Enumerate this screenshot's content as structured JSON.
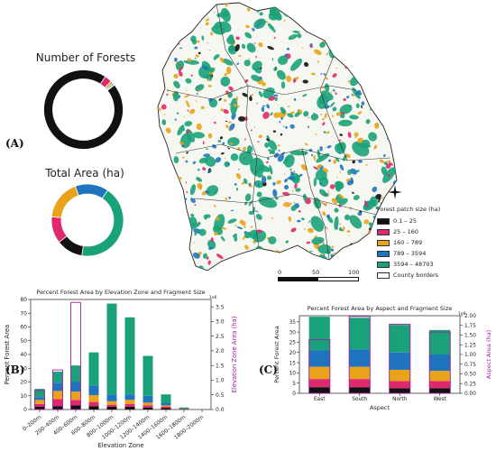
{
  "panel_labels": {
    "a": "(A)",
    "b": "(B)",
    "c": "(C)"
  },
  "colors": {
    "c0": "#111111",
    "c1": "#e0286e",
    "c2": "#e8a31a",
    "c3": "#1f74c0",
    "c4": "#19a27a",
    "totals": "#a020a0",
    "border": "#222222"
  },
  "donuts": {
    "count": {
      "title": "Number of Forests",
      "shares": [
        0.95,
        0.03,
        0.01,
        0.006,
        0.004
      ]
    },
    "area": {
      "title": "Total Area (ha)",
      "shares": [
        0.12,
        0.12,
        0.18,
        0.15,
        0.43
      ]
    }
  },
  "map": {
    "legend_title": "Forest patch size (ha)",
    "legend": [
      {
        "label": "0.1 – 25",
        "color": "#111111"
      },
      {
        "label": "25 – 160",
        "color": "#e0286e"
      },
      {
        "label": "160 – 789",
        "color": "#e8a31a"
      },
      {
        "label": "789 – 3594",
        "color": "#1f74c0"
      },
      {
        "label": "3594 – 48703",
        "color": "#19a27a"
      },
      {
        "label": "County borders",
        "color": "#ffffff"
      }
    ],
    "scale_labels": [
      "0",
      "50",
      "100 km"
    ]
  },
  "chart_data": [
    {
      "type": "bar",
      "title": "Percent Forest Area by Elevation Zone and Fragment Size",
      "xlabel": "Elevation Zone",
      "ylabel": "Percent Forest Area",
      "y2label": "Elevation Zone Area (ha)",
      "y2_scale_note": "1e6",
      "ylim": [
        0,
        80
      ],
      "y2lim": [
        0,
        3.75
      ],
      "yticks": [
        0,
        10,
        20,
        30,
        40,
        50,
        60,
        70,
        80
      ],
      "y2ticks": [
        "0.0",
        "0.5",
        "1.0",
        "1.5",
        "2.0",
        "2.5",
        "3.0",
        "3.5"
      ],
      "categories": [
        "0–200m",
        "200–400m",
        "400–600m",
        "600–800m",
        "800–1000m",
        "1000–1200m",
        "1200–1400m",
        "1400–1600m",
        "1600–1800m",
        "1800–2000m"
      ],
      "series": [
        {
          "name": "0.1 – 25",
          "values": [
            2,
            2.5,
            3,
            2.5,
            2,
            2,
            1.5,
            1,
            0.3,
            0
          ]
        },
        {
          "name": "25 – 160",
          "values": [
            2,
            5,
            4,
            3,
            1.5,
            2,
            1.5,
            1,
            0.2,
            0
          ]
        },
        {
          "name": "160 – 789",
          "values": [
            3,
            6,
            6,
            5,
            2.5,
            3,
            2,
            1,
            0.2,
            0
          ]
        },
        {
          "name": "789 – 3594",
          "values": [
            2,
            6,
            7,
            7,
            5,
            4,
            5,
            2,
            0.3,
            0
          ]
        },
        {
          "name": "3594 – 48703",
          "values": [
            6,
            8,
            12,
            24,
            66,
            56,
            29,
            6,
            0.5,
            0
          ]
        }
      ],
      "area_totals": [
        0.65,
        1.35,
        3.65,
        0,
        0,
        0,
        0,
        0,
        0,
        0
      ]
    },
    {
      "type": "bar",
      "title": "Percent Forest Area by Aspect and Fragment Size",
      "xlabel": "Aspect",
      "ylabel": "Percent Forest Area",
      "y2label": "Aspect Area (ha)",
      "y2_scale_note": "1e6",
      "ylim": [
        0,
        38
      ],
      "y2lim": [
        0,
        2.0
      ],
      "yticks": [
        0,
        5,
        10,
        15,
        20,
        25,
        30,
        35
      ],
      "y2ticks": [
        "0.00",
        "0.25",
        "0.50",
        "0.75",
        "1.00",
        "1.25",
        "1.50",
        "1.75",
        "2.00"
      ],
      "categories": [
        "East",
        "South",
        "North",
        "West"
      ],
      "series": [
        {
          "name": "0.1 – 25",
          "values": [
            3,
            3,
            2.5,
            2.5
          ]
        },
        {
          "name": "25 – 160",
          "values": [
            4,
            4,
            3.5,
            3.5
          ]
        },
        {
          "name": "160 – 789",
          "values": [
            6,
            6,
            5.5,
            5
          ]
        },
        {
          "name": "789 – 3594",
          "values": [
            8,
            8.5,
            8.5,
            8
          ]
        },
        {
          "name": "3594 – 48703",
          "values": [
            16.5,
            15.5,
            13.5,
            12
          ]
        }
      ],
      "area_totals": [
        1.38,
        1.98,
        1.78,
        1.58
      ]
    }
  ]
}
